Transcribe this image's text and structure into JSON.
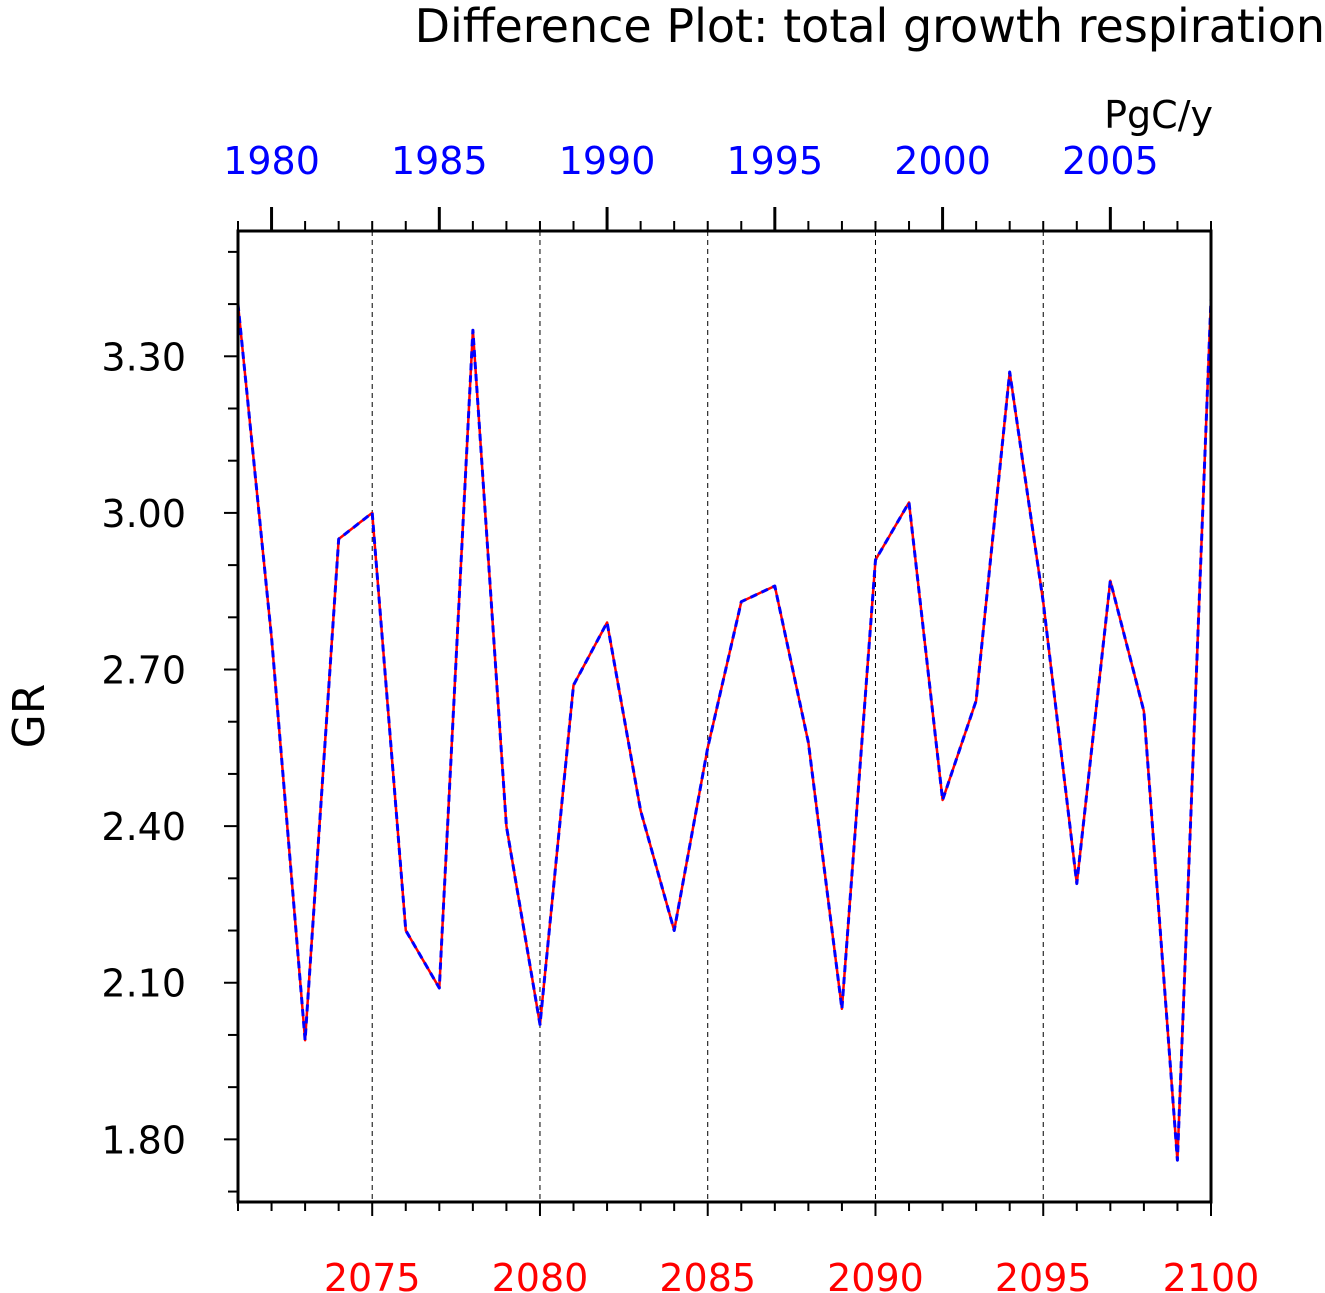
{
  "chart_data": {
    "type": "line",
    "title": "Difference Plot: total growth respiration",
    "units": "PgC/y",
    "ylabel": "GR",
    "ylim": [
      1.68,
      3.54
    ],
    "yticks": [
      1.8,
      2.1,
      2.4,
      2.7,
      3.0,
      3.3
    ],
    "ytick_labels": [
      "1.80",
      "2.10",
      "2.40",
      "2.70",
      "3.00",
      "3.30"
    ],
    "x_bottom": {
      "range": [
        2071,
        2100
      ],
      "ticks": [
        2075,
        2080,
        2085,
        2090,
        2095,
        2100
      ],
      "tick_labels": [
        "2075",
        "2080",
        "2085",
        "2090",
        "2095",
        "2100"
      ],
      "color": "#ff0000"
    },
    "x_top": {
      "range": [
        1979,
        2008
      ],
      "ticks": [
        1980,
        1985,
        1990,
        1995,
        2000,
        2005
      ],
      "tick_labels": [
        "1980",
        "1985",
        "1990",
        "1995",
        "2000",
        "2005"
      ],
      "color": "#0000ff"
    },
    "grid": "vertical dashed at bottom major ticks",
    "series": [
      {
        "color": "#ff0000",
        "style": "solid",
        "x": [
          2071,
          2072,
          2073,
          2074,
          2075,
          2076,
          2077,
          2078,
          2079,
          2080,
          2081,
          2082,
          2083,
          2084,
          2085,
          2086,
          2087,
          2088,
          2089,
          2090,
          2091,
          2092,
          2093,
          2094,
          2095,
          2096,
          2097,
          2098,
          2099,
          2100
        ],
        "values": [
          3.4,
          2.76,
          1.99,
          2.95,
          3.0,
          2.2,
          2.09,
          3.35,
          2.4,
          2.02,
          2.67,
          2.79,
          2.43,
          2.2,
          2.55,
          2.83,
          2.86,
          2.56,
          2.05,
          2.91,
          3.02,
          2.45,
          2.64,
          3.27,
          2.83,
          2.29,
          2.87,
          2.62,
          1.76,
          3.41
        ]
      },
      {
        "color": "#0000ff",
        "style": "dashed",
        "x": [
          1979,
          1980,
          1981,
          1982,
          1983,
          1984,
          1985,
          1986,
          1987,
          1988,
          1989,
          1990,
          1991,
          1992,
          1993,
          1994,
          1995,
          1996,
          1997,
          1998,
          1999,
          2000,
          2001,
          2002,
          2003,
          2004,
          2005,
          2006,
          2007,
          2008
        ],
        "values": [
          3.4,
          2.76,
          1.99,
          2.95,
          3.0,
          2.2,
          2.09,
          3.35,
          2.4,
          2.02,
          2.67,
          2.79,
          2.43,
          2.2,
          2.55,
          2.83,
          2.86,
          2.56,
          2.05,
          2.91,
          3.02,
          2.45,
          2.64,
          3.27,
          2.83,
          2.29,
          2.87,
          2.62,
          1.76,
          3.41
        ]
      }
    ]
  }
}
